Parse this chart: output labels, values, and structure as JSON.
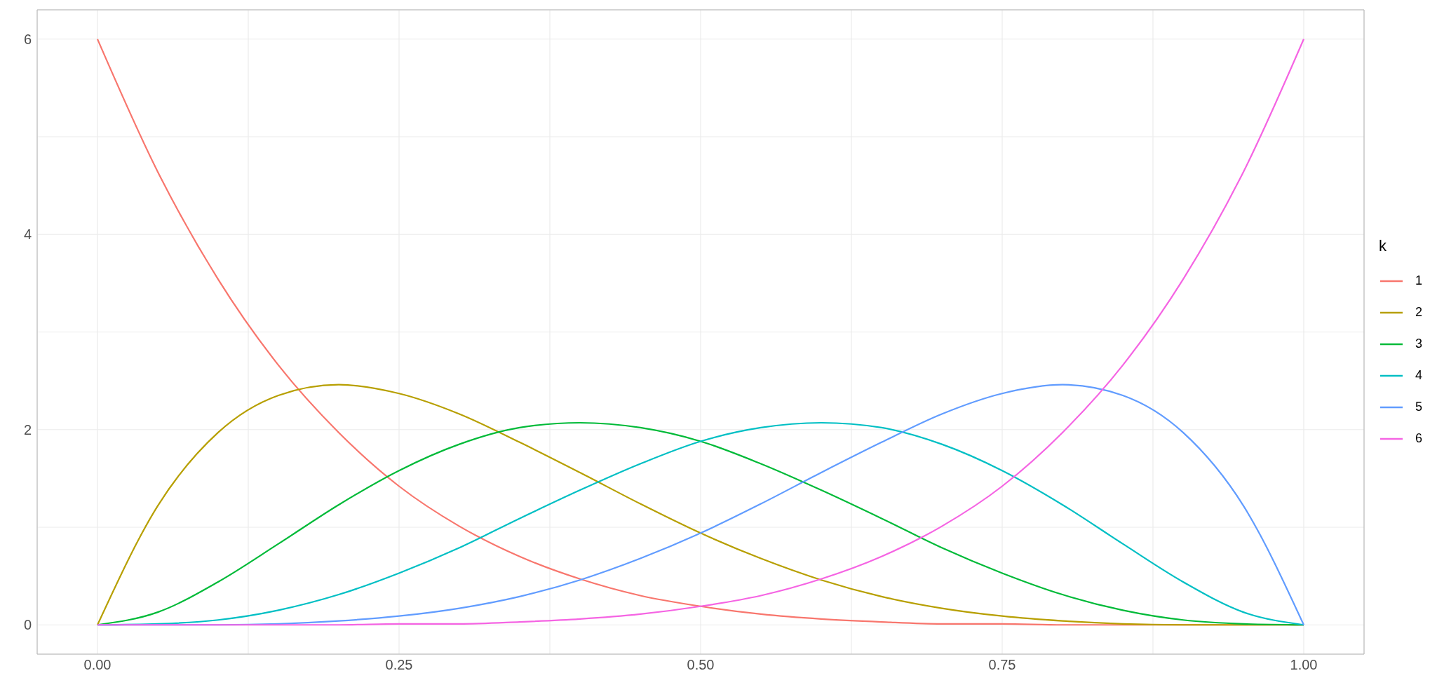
{
  "chart_data": {
    "type": "line",
    "legend_title": "k",
    "legend": "right",
    "grid": true,
    "marker": "none",
    "line_style": "solid",
    "x": [
      0,
      0.05,
      0.1,
      0.15,
      0.2,
      0.25,
      0.3,
      0.35,
      0.4,
      0.45,
      0.5,
      0.55,
      0.6,
      0.65,
      0.7,
      0.75,
      0.8,
      0.85,
      0.9,
      0.95,
      1
    ],
    "xlim": [
      -0.05,
      1.05
    ],
    "xticks": [
      {
        "value": 0,
        "label": "0.00"
      },
      {
        "value": 0.125,
        "label": null
      },
      {
        "value": 0.25,
        "label": "0.25"
      },
      {
        "value": 0.375,
        "label": null
      },
      {
        "value": 0.5,
        "label": "0.50"
      },
      {
        "value": 0.625,
        "label": null
      },
      {
        "value": 0.75,
        "label": "0.75"
      },
      {
        "value": 0.875,
        "label": null
      },
      {
        "value": 1,
        "label": "1.00"
      }
    ],
    "ylim": [
      -0.3,
      6.3
    ],
    "yticks": [
      0,
      {
        "value": 1,
        "label": null
      },
      2,
      {
        "value": 3,
        "label": null
      },
      4,
      {
        "value": 5,
        "label": null
      },
      6
    ],
    "series": [
      {
        "name": "1",
        "color": "#f8766d",
        "values": [
          6,
          4.64,
          3.54,
          2.66,
          1.97,
          1.42,
          1.01,
          0.7,
          0.47,
          0.3,
          0.19,
          0.11,
          0.06,
          0.03,
          0.01,
          0.01,
          0,
          0,
          0,
          0,
          0
        ]
      },
      {
        "name": "2",
        "color": "#b79f00",
        "values": [
          0,
          1.22,
          1.97,
          2.35,
          2.46,
          2.37,
          2.16,
          1.87,
          1.56,
          1.24,
          0.94,
          0.68,
          0.46,
          0.29,
          0.17,
          0.09,
          0.04,
          0.01,
          0,
          0,
          0
        ]
      },
      {
        "name": "3",
        "color": "#00ba38",
        "values": [
          0,
          0.13,
          0.44,
          0.83,
          1.23,
          1.58,
          1.85,
          2.02,
          2.07,
          2.02,
          1.88,
          1.65,
          1.38,
          1.09,
          0.79,
          0.53,
          0.31,
          0.15,
          0.05,
          0.01,
          0
        ]
      },
      {
        "name": "4",
        "color": "#00bfc4",
        "values": [
          0,
          0.01,
          0.05,
          0.15,
          0.31,
          0.53,
          0.79,
          1.09,
          1.38,
          1.65,
          1.88,
          2.02,
          2.07,
          2.02,
          1.85,
          1.58,
          1.23,
          0.83,
          0.44,
          0.13,
          0
        ]
      },
      {
        "name": "5",
        "color": "#619cff",
        "values": [
          0,
          0,
          0,
          0.01,
          0.04,
          0.09,
          0.17,
          0.29,
          0.46,
          0.68,
          0.94,
          1.24,
          1.56,
          1.87,
          2.16,
          2.37,
          2.46,
          2.35,
          1.97,
          1.22,
          0
        ]
      },
      {
        "name": "6",
        "color": "#f564e3",
        "values": [
          0,
          0,
          0,
          0,
          0,
          0.01,
          0.01,
          0.03,
          0.06,
          0.11,
          0.19,
          0.3,
          0.47,
          0.7,
          1.01,
          1.42,
          1.97,
          2.66,
          3.54,
          4.64,
          6
        ]
      }
    ]
  }
}
